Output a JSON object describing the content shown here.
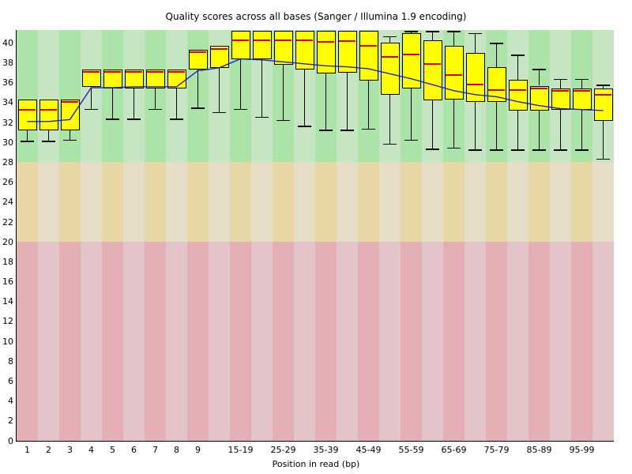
{
  "chart_data": {
    "type": "boxplot",
    "title": "Quality scores across all bases (Sanger / Illumina 1.9 encoding)",
    "xlabel": "Position in read (bp)",
    "ylabel": "",
    "ylim": [
      0,
      41.3
    ],
    "yticks": [
      0,
      2,
      4,
      6,
      8,
      10,
      12,
      14,
      16,
      18,
      20,
      22,
      24,
      26,
      28,
      30,
      32,
      34,
      36,
      38,
      40
    ],
    "grid": false,
    "legend": "none",
    "colors": {
      "box_fill": "#ffff00",
      "box_border": "#000000",
      "median_line": "#d40000",
      "mean_line": "#2525c0",
      "whisker": "#000000",
      "band_good_dark": "#abe3a8",
      "band_good_light": "#c6e6c3",
      "band_medium_dark": "#e6d7a4",
      "band_medium_light": "#e5ddc6",
      "band_poor_dark": "#e3aeb4",
      "band_poor_light": "#e3c5c9"
    },
    "bands": [
      {
        "name": "good",
        "from": 28,
        "to": 41.3
      },
      {
        "name": "medium",
        "from": 20,
        "to": 28
      },
      {
        "name": "poor",
        "from": 0,
        "to": 20
      }
    ],
    "columns": [
      {
        "label": "1",
        "low": 30.1,
        "q1": 31.2,
        "median": 33.3,
        "q3": 34.3,
        "high": null,
        "mean": 32.1
      },
      {
        "label": "2",
        "low": 30.1,
        "q1": 31.2,
        "median": 33.3,
        "q3": 34.3,
        "high": null,
        "mean": 32.1
      },
      {
        "label": "3",
        "low": 30.2,
        "q1": 31.2,
        "median": 34.1,
        "q3": 34.3,
        "high": null,
        "mean": 32.3
      },
      {
        "label": "4",
        "low": 33.3,
        "q1": 35.6,
        "median": 37.1,
        "q3": 37.3,
        "high": null,
        "mean": 35.5
      },
      {
        "label": "5",
        "low": 32.3,
        "q1": 35.4,
        "median": 37.1,
        "q3": 37.3,
        "high": null,
        "mean": 35.5
      },
      {
        "label": "6",
        "low": 32.3,
        "q1": 35.4,
        "median": 37.1,
        "q3": 37.3,
        "high": null,
        "mean": 35.6
      },
      {
        "label": "7",
        "low": 33.3,
        "q1": 35.4,
        "median": 37.1,
        "q3": 37.3,
        "high": null,
        "mean": 35.6
      },
      {
        "label": "8",
        "low": 32.3,
        "q1": 35.4,
        "median": 37.1,
        "q3": 37.3,
        "high": null,
        "mean": 35.6
      },
      {
        "label": "9",
        "low": 33.4,
        "q1": 37.3,
        "median": 39.1,
        "q3": 39.3,
        "high": null,
        "mean": 37.2
      },
      {
        "label": "",
        "low": 33.0,
        "q1": 37.5,
        "median": 39.4,
        "q3": 39.7,
        "high": null,
        "mean": 37.5
      },
      {
        "label": "15-19",
        "low": 33.3,
        "q1": 38.4,
        "median": 40.3,
        "q3": 41.2,
        "high": null,
        "mean": 38.4
      },
      {
        "label": "",
        "low": 32.5,
        "q1": 38.4,
        "median": 40.3,
        "q3": 41.2,
        "high": null,
        "mean": 38.3
      },
      {
        "label": "25-29",
        "low": 32.2,
        "q1": 37.8,
        "median": 40.3,
        "q3": 41.2,
        "high": null,
        "mean": 38.1
      },
      {
        "label": "",
        "low": 31.6,
        "q1": 37.3,
        "median": 40.3,
        "q3": 41.2,
        "high": null,
        "mean": 37.9
      },
      {
        "label": "35-39",
        "low": 31.2,
        "q1": 36.9,
        "median": 40.1,
        "q3": 41.2,
        "high": null,
        "mean": 37.7
      },
      {
        "label": "",
        "low": 31.2,
        "q1": 37.0,
        "median": 40.2,
        "q3": 41.2,
        "high": null,
        "mean": 37.6
      },
      {
        "label": "45-49",
        "low": 31.3,
        "q1": 36.2,
        "median": 39.7,
        "q3": 41.2,
        "high": null,
        "mean": 37.4
      },
      {
        "label": "",
        "low": 29.8,
        "q1": 34.8,
        "median": 38.6,
        "q3": 40.0,
        "high": 40.7,
        "mean": 36.9
      },
      {
        "label": "55-59",
        "low": 30.2,
        "q1": 35.4,
        "median": 38.8,
        "q3": 41.0,
        "high": 41.2,
        "mean": 36.4
      },
      {
        "label": "",
        "low": 29.3,
        "q1": 34.2,
        "median": 37.9,
        "q3": 40.3,
        "high": 41.2,
        "mean": 35.8
      },
      {
        "label": "65-69",
        "low": 29.4,
        "q1": 34.3,
        "median": 36.8,
        "q3": 39.7,
        "high": 41.2,
        "mean": 35.2
      },
      {
        "label": "",
        "low": 29.2,
        "q1": 34.1,
        "median": 35.8,
        "q3": 39.0,
        "high": 41.0,
        "mean": 34.8
      },
      {
        "label": "75-79",
        "low": 29.2,
        "q1": 34.1,
        "median": 35.3,
        "q3": 37.6,
        "high": 40.0,
        "mean": 34.6
      },
      {
        "label": "",
        "low": 29.2,
        "q1": 33.2,
        "median": 35.3,
        "q3": 36.3,
        "high": 38.8,
        "mean": 34.1
      },
      {
        "label": "85-89",
        "low": 29.2,
        "q1": 33.2,
        "median": 35.4,
        "q3": 35.7,
        "high": 37.4,
        "mean": 33.7
      },
      {
        "label": "",
        "low": 29.2,
        "q1": 33.3,
        "median": 35.2,
        "q3": 35.4,
        "high": 36.4,
        "mean": 33.4
      },
      {
        "label": "95-99",
        "low": 29.2,
        "q1": 33.3,
        "median": 35.2,
        "q3": 35.4,
        "high": 36.4,
        "mean": 33.3
      },
      {
        "label": "",
        "low": 28.3,
        "q1": 32.2,
        "median": 34.8,
        "q3": 35.4,
        "high": 35.8,
        "mean": 33.2
      }
    ]
  }
}
